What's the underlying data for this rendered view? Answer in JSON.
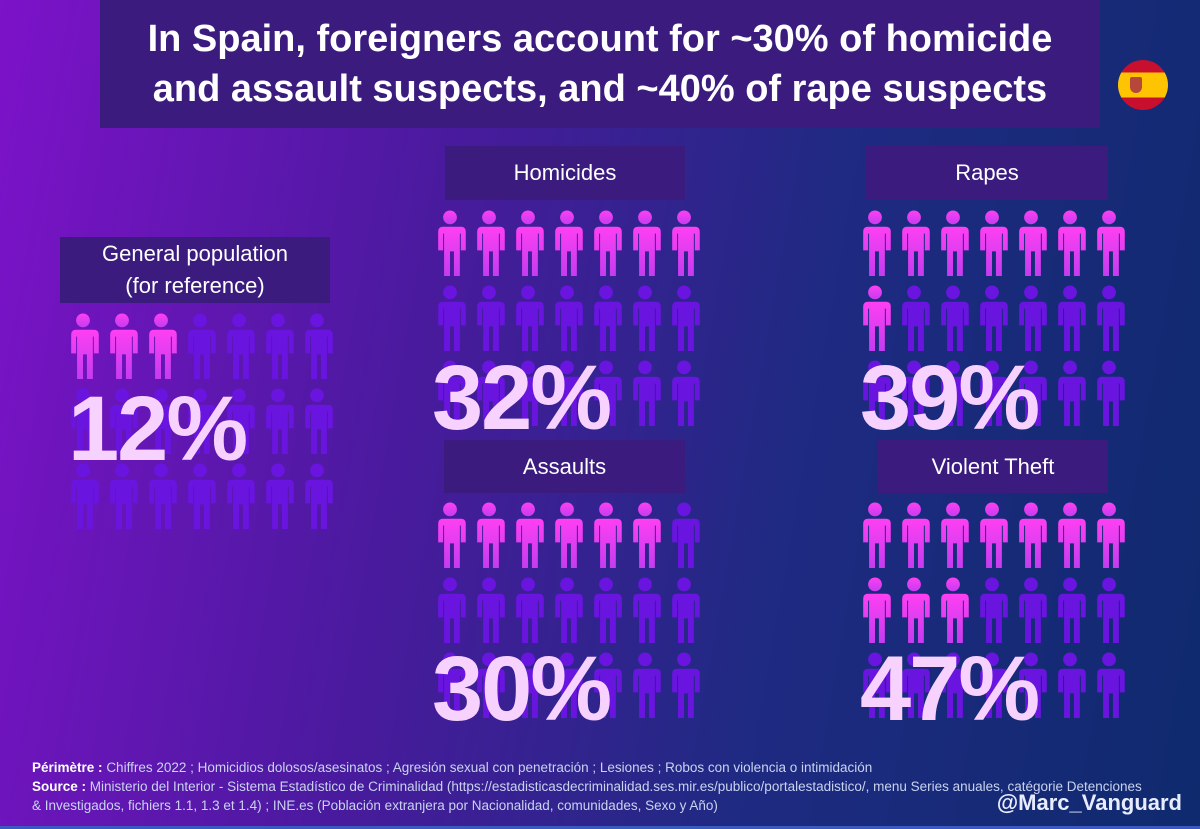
{
  "title": {
    "line1": "In Spain, foreigners account for ~30% of homicide",
    "line2": "and assault suspects, and ~40% of rape suspects"
  },
  "flag_icon": "spain-flag-icon",
  "colors": {
    "highlight": "#ff40f0",
    "base": "#6a14e0",
    "label_bg": "#3b1c7e",
    "pct_text": "#f7d2ff"
  },
  "chart_data": {
    "type": "pictogram",
    "icons_per_panel": 21,
    "panels": [
      {
        "label_line1": "General population",
        "label_line2": "(for reference)",
        "value": 12,
        "percent_label": "12%",
        "highlighted_icons": 3
      },
      {
        "label_line1": "Homicides",
        "value": 32,
        "percent_label": "32%",
        "highlighted_icons": 7
      },
      {
        "label_line1": "Rapes",
        "value": 39,
        "percent_label": "39%",
        "highlighted_icons": 8
      },
      {
        "label_line1": "Assaults",
        "value": 30,
        "percent_label": "30%",
        "highlighted_icons": 6
      },
      {
        "label_line1": "Violent Theft",
        "value": 47,
        "percent_label": "47%",
        "highlighted_icons": 10
      }
    ]
  },
  "footer": {
    "perimetre_label": "Périmètre :",
    "perimetre_text": "Chiffres 2022 ; Homicidios dolosos/asesinatos ; Agresión sexual con penetración ; Lesiones ; Robos con violencia o intimidación",
    "source_label": "Source :",
    "source_text": "Ministerio del Interior - Sistema Estadístico de Criminalidad (https://estadisticasdecriminalidad.ses.mir.es/publico/portalestadistico/, menu Series anuales, catégorie Detenciones & Investigados, fichiers 1.1, 1.3 et 1.4) ; INE.es (Población extranjera por Nacionalidad, comunidades, Sexo y Año)",
    "handle": "@Marc_Vanguard"
  }
}
